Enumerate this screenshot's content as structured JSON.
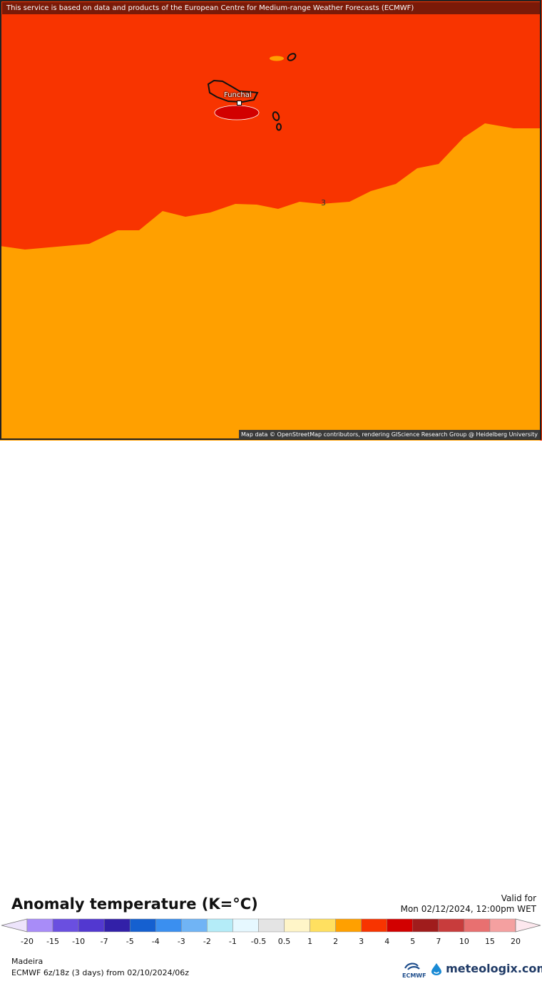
{
  "banner": "This service is based on data and products of the European Centre for Medium-range Weather Forecasts (ECMWF)",
  "attribution": "Map data © OpenStreetMap contributors, rendering GIScience Research Group @ Heidelberg University",
  "map": {
    "city_label": "Funchal",
    "contour_label": "3",
    "colors": {
      "anom_3_4": "#f83400",
      "anom_2_3": "#ffa000",
      "anom_4_5": "#d20000",
      "coast": "#111111"
    }
  },
  "legend": {
    "title": "Anomaly temperature (K=°C)",
    "valid_for": "Valid for",
    "valid_time": "Mon 02/12/2024, 12:00pm WET",
    "region": "Madeira",
    "run": "ECMWF 6z/18z (3 days)  from  02/10/2024/06z",
    "ecmwf_logo_text": "ECMWF",
    "brand": "meteologix.com",
    "colors": [
      "#a88cf8",
      "#6a4fe0",
      "#5238d0",
      "#3220a8",
      "#1560d0",
      "#3a8ff0",
      "#70b4f5",
      "#b4ecf8",
      "#e6f8ff",
      "#e4e4e4",
      "#fff5c8",
      "#ffe060",
      "#ffa000",
      "#f83400",
      "#d20000",
      "#a01c1c",
      "#c83c3c",
      "#e87070",
      "#f4a0a0"
    ],
    "ticks": [
      "-20",
      "-15",
      "-10",
      "-7",
      "-5",
      "-4",
      "-3",
      "-2",
      "-1",
      "-0.5",
      "0.5",
      "1",
      "2",
      "3",
      "4",
      "5",
      "7",
      "10",
      "15",
      "20"
    ]
  }
}
